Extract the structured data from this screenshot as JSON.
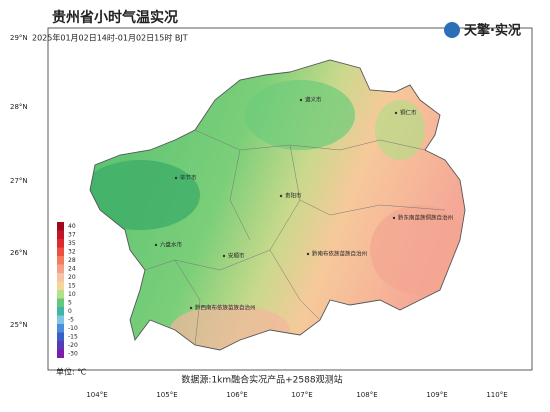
{
  "header": {
    "title": "贵州省小时气温实况",
    "subtitle": "2025年01月02日14时-01月02日15时 BJT",
    "logo": "天擎·实况"
  },
  "axes": {
    "latitude": [
      "29°N",
      "28°N",
      "27°N",
      "26°N",
      "25°N"
    ],
    "longitude": [
      "104°E",
      "105°E",
      "106°E",
      "107°E",
      "108°E",
      "109°E",
      "110°E"
    ]
  },
  "places": [
    {
      "label": "遵义市"
    },
    {
      "label": "铜仁市"
    },
    {
      "label": "毕节市"
    },
    {
      "label": "贵阳市"
    },
    {
      "label": "黔东南苗族侗族自治州"
    },
    {
      "label": "六盘水市"
    },
    {
      "label": "安顺市"
    },
    {
      "label": "黔南布依族苗族自治州"
    },
    {
      "label": "黔西南布依族苗族自治州"
    }
  ],
  "legend": {
    "unit": "单位: ℃",
    "levels": [
      {
        "value": 40,
        "color": "#9e0a1c"
      },
      {
        "value": 37,
        "color": "#c01628"
      },
      {
        "value": 35,
        "color": "#dc2a30"
      },
      {
        "value": 32,
        "color": "#ec5040"
      },
      {
        "value": 28,
        "color": "#f27a5e"
      },
      {
        "value": 24,
        "color": "#f5a08a"
      },
      {
        "value": 20,
        "color": "#f7c3a8"
      },
      {
        "value": 15,
        "color": "#f6d59a"
      },
      {
        "value": 10,
        "color": "#b4e08a"
      },
      {
        "value": 5,
        "color": "#66c87a"
      },
      {
        "value": 0,
        "color": "#3fb6a8"
      },
      {
        "value": -5,
        "color": "#7fc6e8"
      },
      {
        "value": -10,
        "color": "#4a90d8"
      },
      {
        "value": -15,
        "color": "#3a5fc8"
      },
      {
        "value": -20,
        "color": "#5a3ab8"
      },
      {
        "value": -30,
        "color": "#7a1fa8"
      }
    ]
  },
  "footer": {
    "source": "数据源:1km融合实况产品+2588观测站"
  }
}
